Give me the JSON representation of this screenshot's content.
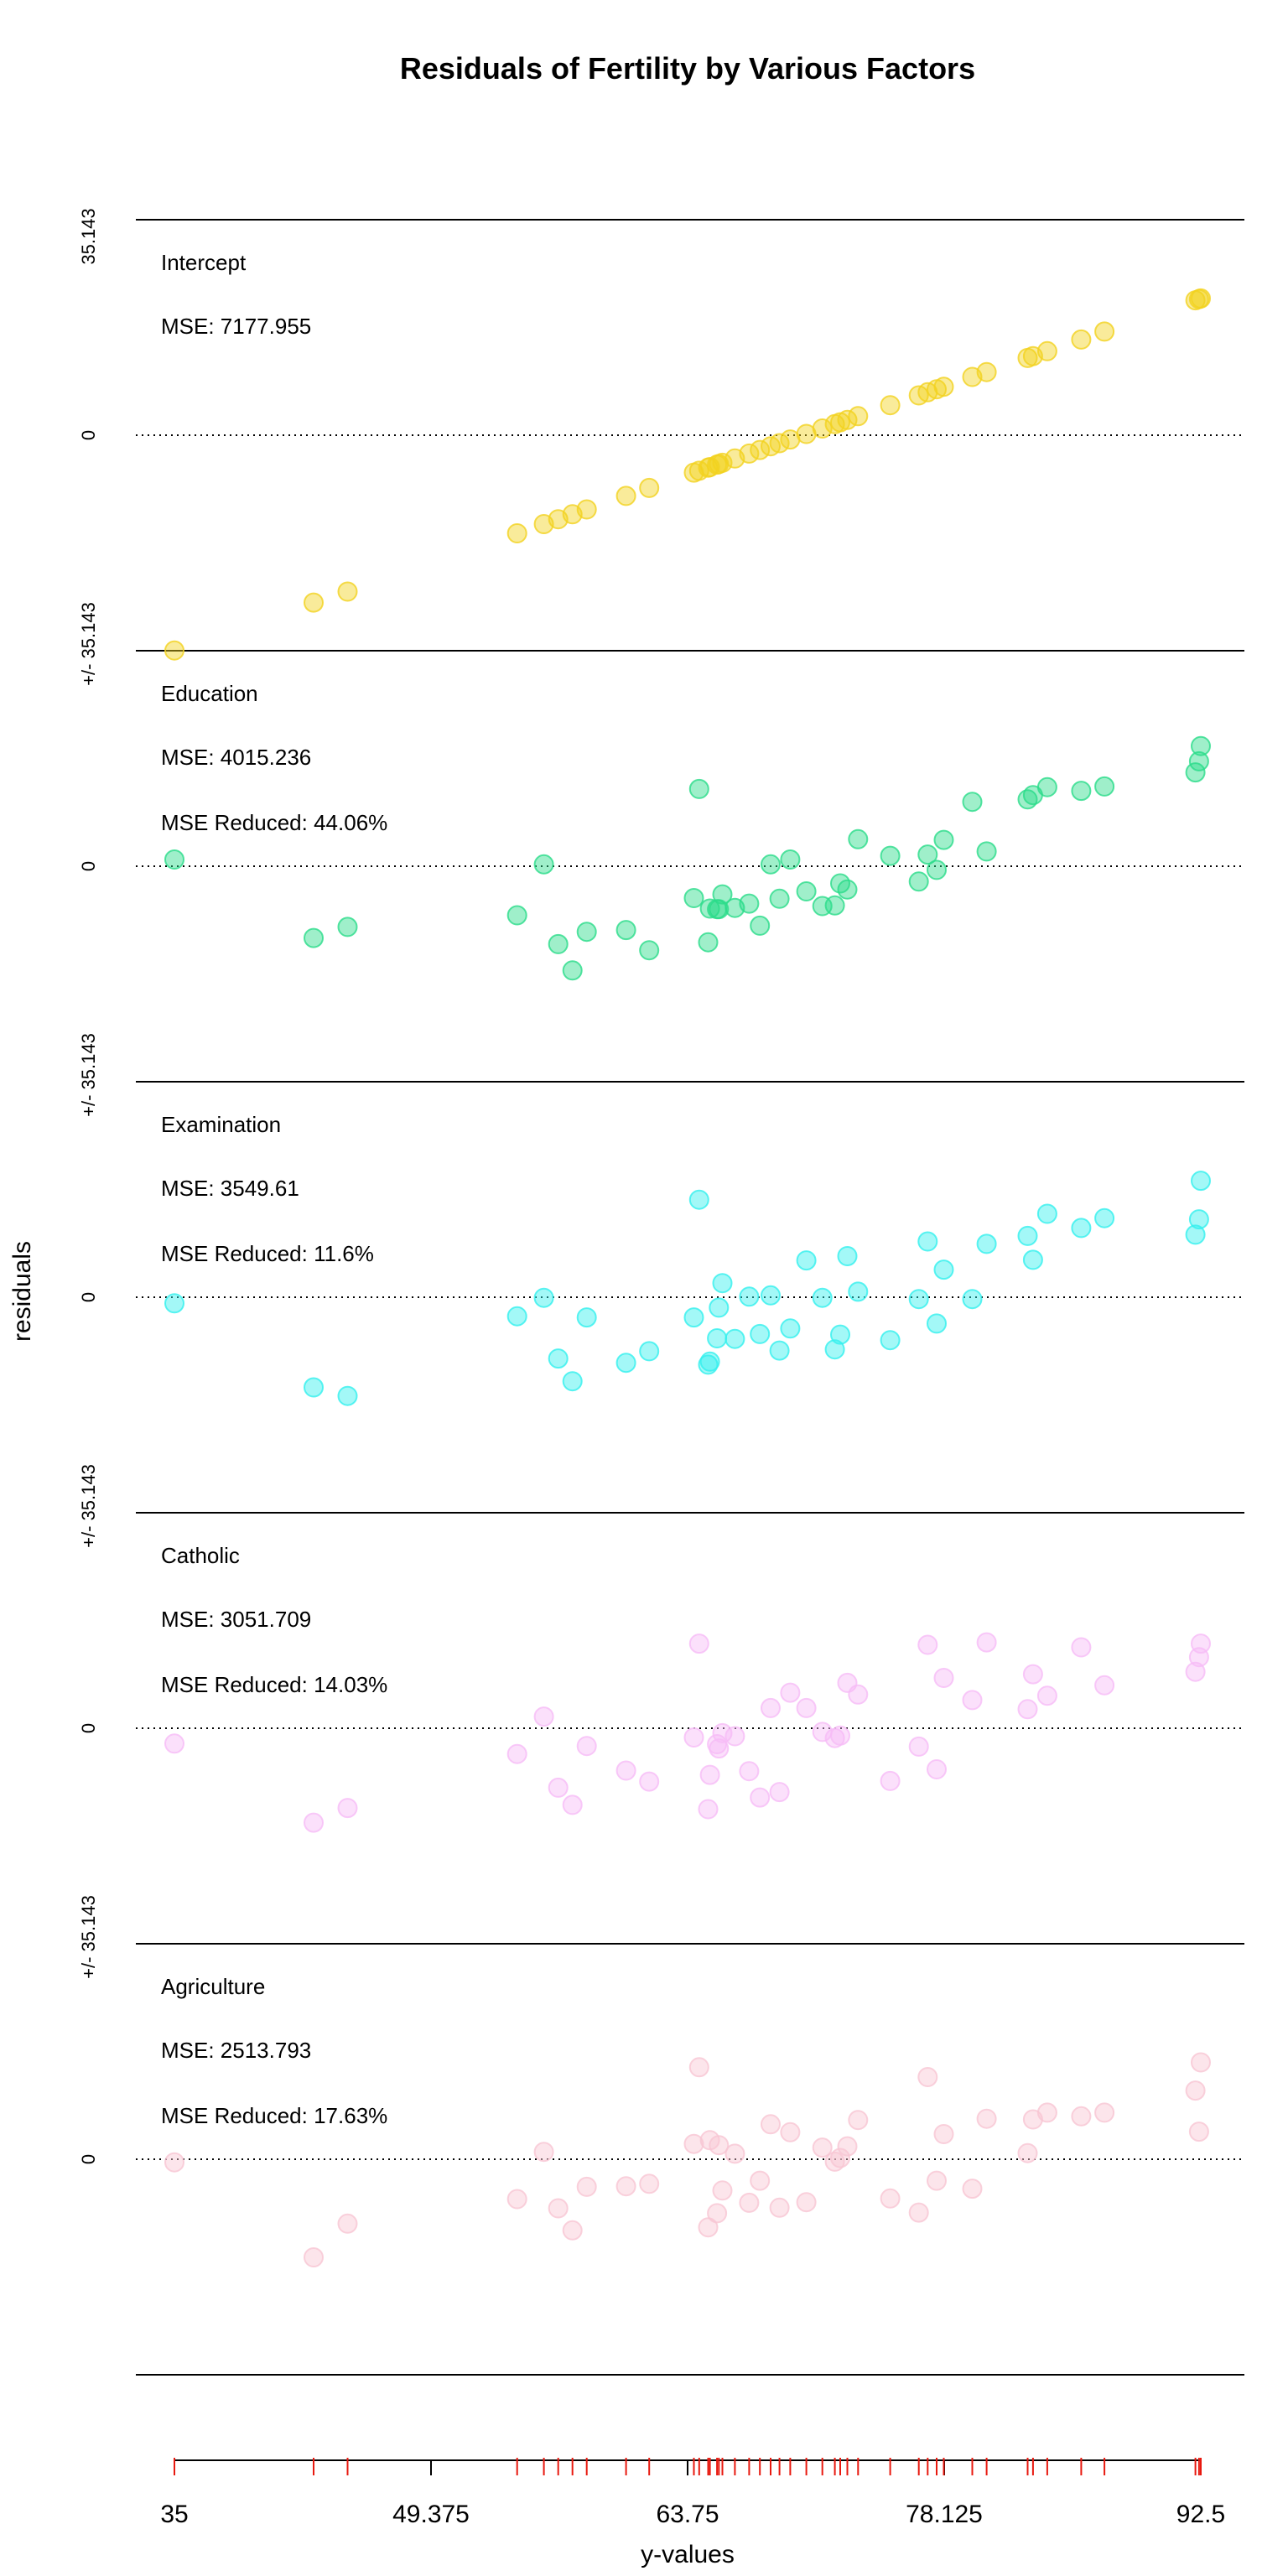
{
  "chart_data": {
    "type": "scatter",
    "title": "Residuals of Fertility by Various Factors",
    "xlabel": "y-values",
    "ylabel": "residuals",
    "x_ticks": [
      "35",
      "49.375",
      "63.75",
      "78.125",
      "92.5"
    ],
    "xlim": [
      35,
      92.5
    ],
    "y_scale_label": "35.143",
    "residual_range": [
      -35.143,
      35.143
    ],
    "x": [
      35.0,
      42.8,
      44.7,
      54.2,
      55.7,
      56.5,
      57.3,
      58.1,
      60.3,
      61.6,
      64.1,
      64.4,
      64.9,
      65.0,
      65.4,
      65.5,
      65.7,
      66.4,
      67.2,
      67.8,
      68.4,
      68.9,
      69.5,
      70.4,
      71.3,
      72.0,
      72.3,
      72.7,
      73.3,
      75.1,
      76.7,
      77.2,
      77.7,
      78.1,
      79.7,
      80.5,
      82.8,
      83.1,
      83.9,
      85.8,
      87.1,
      92.2,
      92.4,
      92.5
    ],
    "cumulative_mse": [
      7177.955,
      4015.236,
      3549.61,
      3051.709,
      2513.793
    ],
    "series": [
      {
        "name": "Intercept",
        "mse_text": "MSE: 7177.955",
        "reduced_text": "",
        "color": "#f2d21f",
        "values": [
          -35.1,
          -27.3,
          -25.5,
          -16.0,
          -14.5,
          -13.7,
          -12.9,
          -12.1,
          -9.9,
          -8.6,
          -6.1,
          -5.8,
          -5.3,
          -5.2,
          -4.8,
          -4.7,
          -4.5,
          -3.8,
          -3.0,
          -2.4,
          -1.8,
          -1.3,
          -0.7,
          0.2,
          1.1,
          1.8,
          2.1,
          2.5,
          3.1,
          4.9,
          6.5,
          7.0,
          7.5,
          7.9,
          9.5,
          10.3,
          12.6,
          12.9,
          13.7,
          15.6,
          16.9,
          22.0,
          22.2,
          22.3
        ]
      },
      {
        "name": "Education",
        "mse_text": "MSE: 4015.236",
        "reduced_text": "MSE Reduced: 44.06%",
        "color": "#2bdc8a",
        "values": [
          1.1,
          -11.7,
          -9.9,
          -8.0,
          0.3,
          -12.7,
          -17.0,
          -10.7,
          -10.4,
          -13.7,
          -5.2,
          12.6,
          -12.4,
          -6.9,
          -7.0,
          -7.0,
          -4.6,
          -6.8,
          -6.1,
          -9.7,
          0.3,
          -5.3,
          1.1,
          -4.1,
          -6.5,
          -6.4,
          -2.8,
          -3.8,
          4.4,
          1.7,
          -2.5,
          1.9,
          -0.6,
          4.3,
          10.5,
          2.4,
          10.9,
          11.6,
          12.9,
          12.3,
          13.0,
          15.3,
          17.1,
          19.6
        ]
      },
      {
        "name": "Examination",
        "mse_text": "MSE: 3549.61",
        "reduced_text": "MSE Reduced: 11.6%",
        "color": "#33f0ee",
        "values": [
          -1.0,
          -14.7,
          -16.1,
          -3.1,
          -0.1,
          -10.0,
          -13.7,
          -3.3,
          -10.7,
          -8.8,
          -3.3,
          15.9,
          -11.0,
          -10.5,
          -6.7,
          -1.7,
          2.3,
          -6.8,
          0.1,
          -6.0,
          0.3,
          -8.7,
          -5.1,
          6.0,
          -0.1,
          -8.5,
          -6.1,
          6.7,
          0.9,
          -7.0,
          -0.3,
          9.1,
          -4.3,
          4.5,
          -0.3,
          8.7,
          10.0,
          6.1,
          13.6,
          11.3,
          12.9,
          10.2,
          12.7,
          19.0
        ]
      },
      {
        "name": "Catholic",
        "mse_text": "MSE: 3051.709",
        "reduced_text": "MSE Reduced: 14.03%",
        "color": "#f6bbf6",
        "values": [
          -2.5,
          -15.4,
          -13.0,
          -4.2,
          1.9,
          -9.7,
          -12.5,
          -2.9,
          -6.9,
          -8.7,
          -1.5,
          13.8,
          -13.2,
          -7.6,
          -2.6,
          -3.3,
          -0.8,
          -1.3,
          -7.0,
          -11.3,
          3.3,
          -10.4,
          5.8,
          3.3,
          -0.6,
          -1.6,
          -1.2,
          7.4,
          5.5,
          -8.6,
          -3.0,
          13.6,
          -6.7,
          8.2,
          4.6,
          14.0,
          3.1,
          8.8,
          5.3,
          13.2,
          7.0,
          9.2,
          11.6,
          13.8
        ]
      },
      {
        "name": "Agriculture",
        "mse_text": "MSE: 2513.793",
        "reduced_text": "MSE Reduced: 17.63%",
        "color": "#f8c6d3",
        "values": [
          -0.5,
          -16.0,
          -10.5,
          -6.5,
          1.2,
          -8.0,
          -11.6,
          -4.5,
          -4.4,
          -4.0,
          2.5,
          15.0,
          -11.1,
          3.1,
          -8.8,
          2.3,
          -5.1,
          0.9,
          -7.1,
          -3.5,
          5.7,
          -7.9,
          4.4,
          -7.0,
          1.9,
          -0.4,
          0.2,
          2.1,
          6.4,
          -6.4,
          -8.7,
          13.4,
          -3.5,
          4.1,
          -4.8,
          6.6,
          1.0,
          6.5,
          7.6,
          7.0,
          7.6,
          11.2,
          4.5,
          15.8
        ]
      }
    ]
  }
}
